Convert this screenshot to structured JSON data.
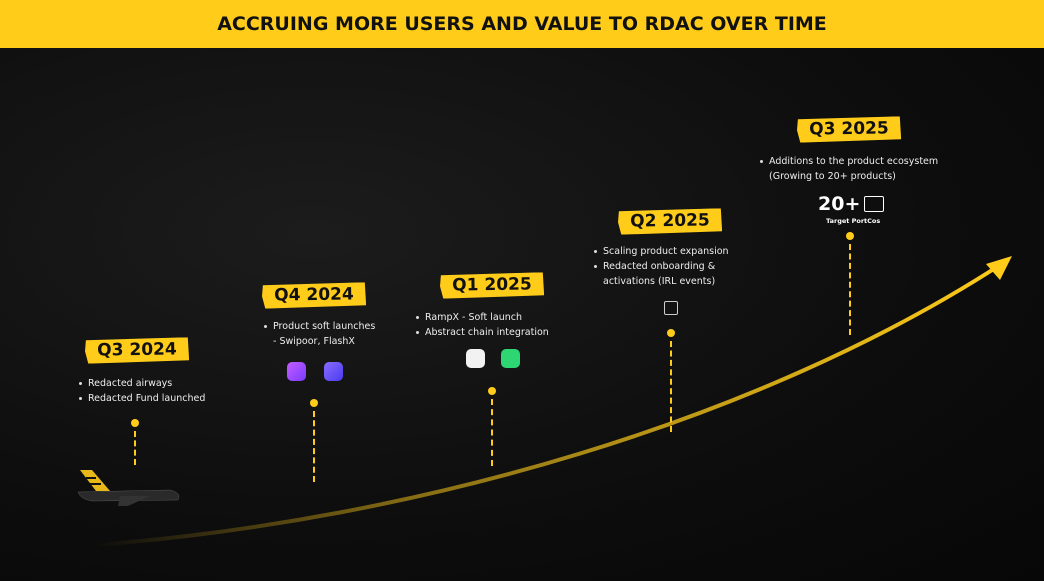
{
  "header": {
    "title": "ACCRUING MORE USERS AND VALUE TO RDAC OVER TIME"
  },
  "milestones": [
    {
      "label": "Q3 2024",
      "bullets": [
        [
          "Redacted airways"
        ],
        [
          "Redacted Fund launched"
        ]
      ]
    },
    {
      "label": "Q4 2024",
      "bullets": [
        [
          "Product soft launches",
          "- Swipoor, FlashX"
        ]
      ]
    },
    {
      "label": "Q1 2025",
      "bullets": [
        [
          "RampX - Soft launch"
        ],
        [
          "Abstract chain integration"
        ]
      ]
    },
    {
      "label": "Q2 2025",
      "bullets": [
        [
          "Scaling product expansion"
        ],
        [
          "Redacted onboarding &",
          "activations (IRL events)"
        ]
      ]
    },
    {
      "label": "Q3 2025",
      "bullets": [
        [
          "Additions to the product ecosystem",
          "(Growing to 20+ products)"
        ]
      ],
      "stat": {
        "value": "20+",
        "caption": "Target PortCos"
      }
    }
  ]
}
